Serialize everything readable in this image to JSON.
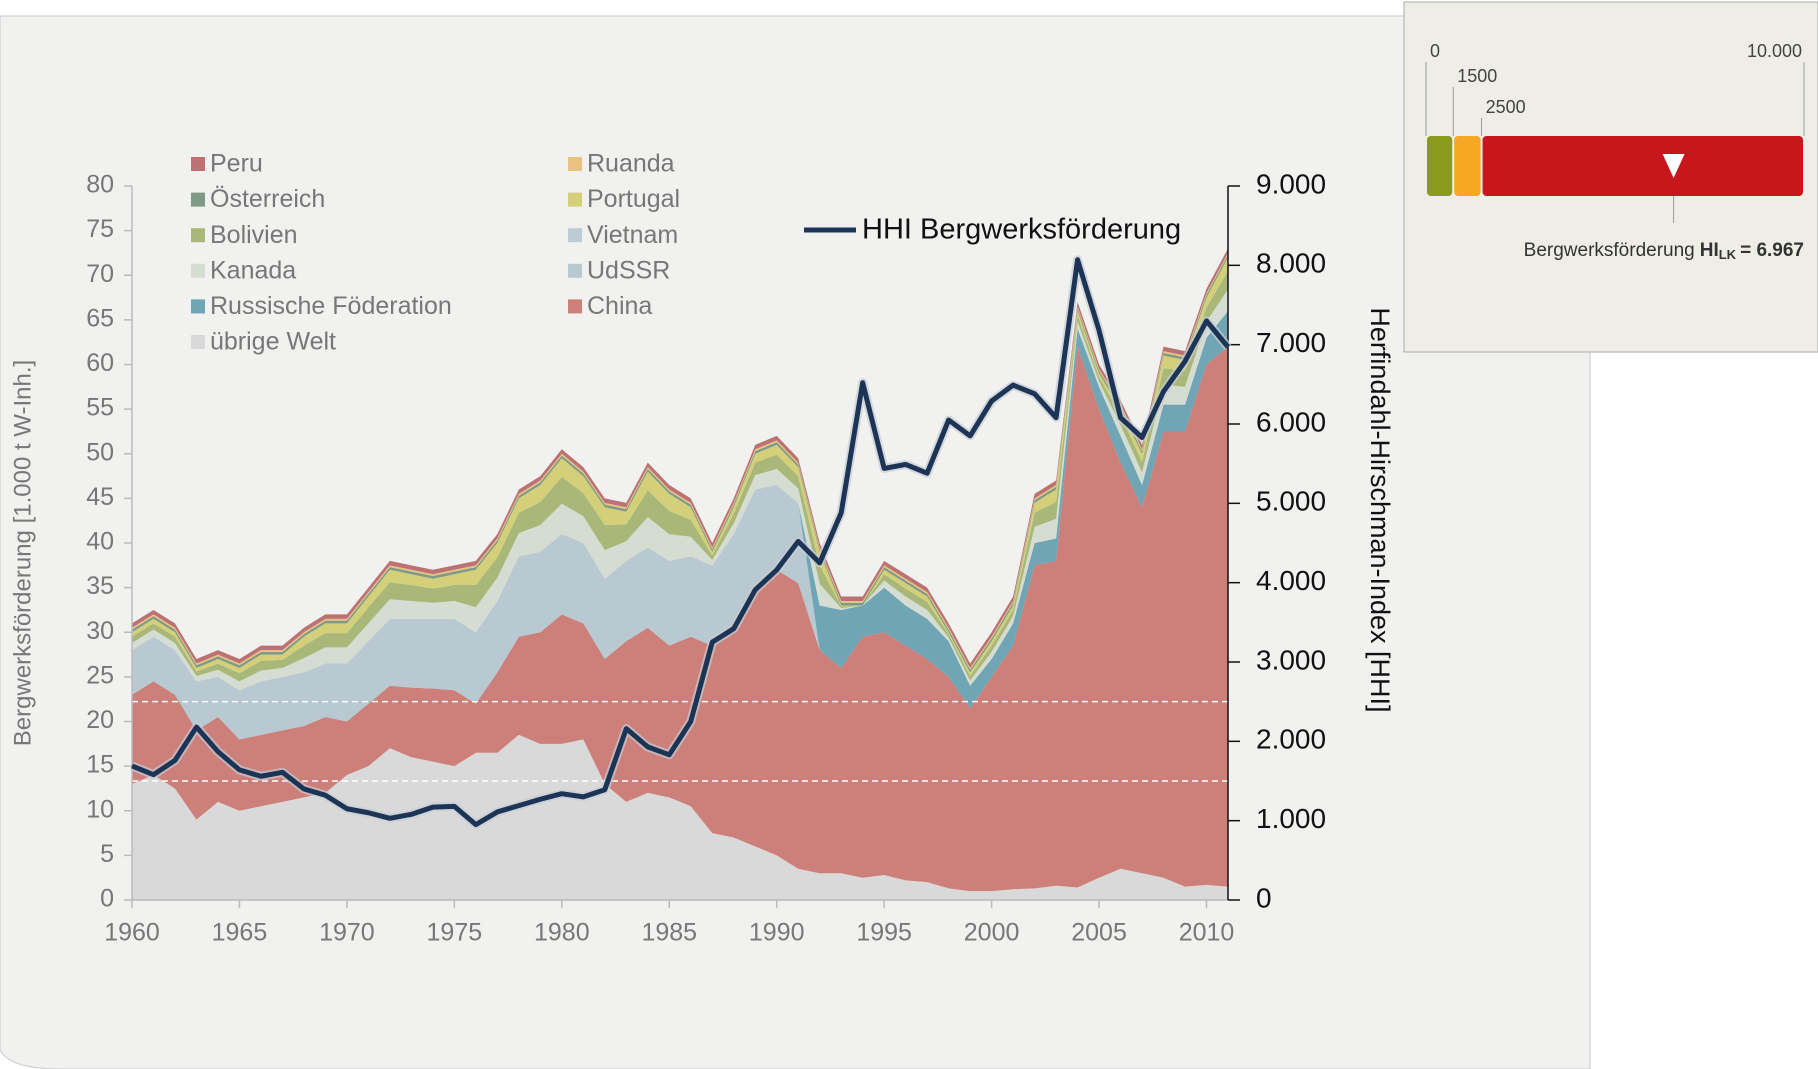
{
  "chart_data": {
    "type": "stacked_area",
    "ylabel": "Bergwerksförderung [1.000 t W-Inh.]",
    "y2label": "Herfindahl-Hirschman-Index [HHI]",
    "x": [
      1960,
      1961,
      1962,
      1963,
      1964,
      1965,
      1966,
      1967,
      1968,
      1969,
      1970,
      1971,
      1972,
      1973,
      1974,
      1975,
      1976,
      1977,
      1978,
      1979,
      1980,
      1981,
      1982,
      1983,
      1984,
      1985,
      1986,
      1987,
      1988,
      1989,
      1990,
      1991,
      1992,
      1993,
      1994,
      1995,
      1996,
      1997,
      1998,
      1999,
      2000,
      2001,
      2002,
      2003,
      2004,
      2005,
      2006,
      2007,
      2008,
      2009,
      2010,
      2011
    ],
    "xlim": [
      1960,
      2011
    ],
    "xticks": [
      1960,
      1965,
      1970,
      1975,
      1980,
      1985,
      1990,
      1995,
      2000,
      2005,
      2010
    ],
    "ylim": [
      0,
      80
    ],
    "yticks": [
      0,
      5,
      10,
      15,
      20,
      25,
      30,
      35,
      40,
      45,
      50,
      55,
      60,
      65,
      70,
      75,
      80
    ],
    "y2lim": [
      0,
      9000
    ],
    "y2ticks": [
      0,
      {
        "value": 1000,
        "label": "1.000"
      },
      {
        "value": 2000,
        "label": "2.000"
      },
      {
        "value": 3000,
        "label": "3.000"
      },
      {
        "value": 4000,
        "label": "4.000"
      },
      {
        "value": 5000,
        "label": "5.000"
      },
      {
        "value": 6000,
        "label": "6.000"
      },
      {
        "value": 7000,
        "label": "7.000"
      },
      {
        "value": 8000,
        "label": "8.000"
      },
      {
        "value": 9000,
        "label": "9.000"
      }
    ],
    "series": [
      {
        "name": "übrige Welt",
        "color": "#d9d9d9",
        "values": [
          13,
          14,
          12.5,
          9,
          11,
          10,
          10.5,
          11,
          11.5,
          12,
          14,
          15,
          17,
          16,
          15.5,
          15,
          16.5,
          16.5,
          18.5,
          17.5,
          17.5,
          18,
          13,
          11,
          12,
          11.5,
          10.5,
          7.5,
          7,
          6,
          5,
          3.5,
          3,
          3,
          2.5,
          2.8,
          2.2,
          2,
          1.3,
          1,
          1,
          1.2,
          1.3,
          1.6,
          1.4,
          2.5,
          3.5,
          3,
          2.5,
          1.5,
          1.7,
          1.5
        ]
      },
      {
        "name": "China",
        "color": "#cd7f79",
        "values": [
          10,
          10.5,
          10.5,
          10,
          9.5,
          8,
          8,
          8,
          8,
          8.5,
          6,
          7,
          7,
          7.8,
          8.2,
          8.5,
          5.5,
          9,
          11,
          12.5,
          14.5,
          13,
          14,
          18,
          18.5,
          17,
          19,
          21,
          24,
          29,
          32,
          32,
          25,
          23,
          27,
          27.2,
          26.3,
          25,
          23.7,
          20.5,
          24,
          27.3,
          36.2,
          36.4,
          60.6,
          52.5,
          45.5,
          41,
          50,
          51,
          58.3,
          60.5
        ]
      },
      {
        "name": "UdSSR",
        "color": "#b8c9d2",
        "values": [
          5,
          5,
          5,
          5.5,
          4.5,
          5.5,
          6,
          6,
          6,
          6,
          6.5,
          7,
          7.5,
          7.7,
          7.8,
          8,
          8,
          8,
          9,
          9,
          9,
          9,
          9,
          9,
          9,
          9.5,
          9,
          9,
          10,
          11,
          9.5,
          9,
          0,
          0,
          0,
          0,
          0,
          0,
          0,
          0,
          0,
          0,
          0,
          0,
          0,
          0,
          0,
          0,
          0,
          0,
          0,
          0
        ]
      },
      {
        "name": "Russische Föderation",
        "color": "#6fa5b5",
        "values": [
          0,
          0,
          0,
          0,
          0,
          0,
          0,
          0,
          0,
          0,
          0,
          0,
          0,
          0,
          0,
          0,
          0,
          0,
          0,
          0,
          0,
          0,
          0,
          0,
          0,
          0,
          0,
          0,
          0,
          0,
          0,
          0,
          5,
          6.5,
          3.5,
          5,
          4.5,
          4.5,
          4,
          2.5,
          2,
          2.5,
          2.5,
          2.5,
          2,
          2.5,
          3,
          2.5,
          3,
          3,
          3,
          4
        ]
      },
      {
        "name": "Vietnam",
        "color": "#bccbd4",
        "values": [
          0,
          0,
          0,
          0,
          0,
          0,
          0,
          0,
          0,
          0,
          0,
          0,
          0,
          0,
          0,
          0,
          0,
          0,
          0,
          0,
          0,
          0,
          0,
          0,
          0,
          0,
          0,
          0,
          0,
          0,
          0,
          0,
          0,
          0,
          0,
          0,
          0,
          0,
          0,
          0,
          0,
          0,
          0,
          0,
          0,
          0,
          0,
          0,
          0,
          0,
          0,
          0
        ]
      },
      {
        "name": "Kanada",
        "color": "#d5ddd3",
        "values": [
          0.8,
          0.8,
          0.8,
          0.6,
          0.8,
          1.0,
          1.2,
          1.0,
          1.6,
          1.8,
          1.8,
          2.0,
          2.2,
          2.0,
          1.8,
          2.0,
          2.8,
          2.6,
          2.6,
          3.0,
          3.4,
          3.0,
          3.2,
          2.2,
          3.4,
          3.0,
          2.2,
          0.6,
          1.2,
          1.6,
          1.8,
          1.6,
          2.4,
          0.2,
          0,
          0.8,
          1.0,
          1.0,
          0.4,
          0.6,
          0.8,
          0.8,
          1.8,
          2.2,
          0.8,
          0.6,
          1.2,
          1.4,
          2.2,
          2.0,
          1.8,
          2.4
        ]
      },
      {
        "name": "Bolivien",
        "color": "#a9b879",
        "values": [
          0.7,
          0.7,
          0.7,
          0.5,
          0.7,
          0.9,
          1.1,
          0.9,
          1.4,
          1.6,
          1.6,
          1.8,
          1.9,
          1.8,
          1.6,
          1.8,
          2.5,
          2.3,
          2.3,
          2.6,
          3.0,
          2.6,
          2.8,
          1.9,
          3.0,
          2.6,
          1.9,
          0.5,
          1.1,
          1.4,
          1.6,
          1.4,
          2.1,
          0.2,
          0,
          0.7,
          0.9,
          0.9,
          0.4,
          0.5,
          0.7,
          0.7,
          1.6,
          1.9,
          0.7,
          0.5,
          1.1,
          1.2,
          1.9,
          1.8,
          1.6,
          2.1
        ]
      },
      {
        "name": "Portugal",
        "color": "#d3d079",
        "values": [
          0.5,
          0.5,
          0.5,
          0.4,
          0.5,
          0.6,
          0.7,
          0.6,
          1.0,
          1.1,
          1.1,
          1.2,
          1.4,
          1.2,
          1.1,
          1.2,
          1.7,
          1.6,
          1.6,
          1.9,
          2.1,
          1.9,
          2.0,
          1.4,
          2.1,
          1.9,
          1.4,
          0.4,
          0.7,
          1.0,
          1.1,
          1.0,
          1.5,
          0.1,
          0,
          0.5,
          0.6,
          0.6,
          0.2,
          0.4,
          0.5,
          0.5,
          1.1,
          1.4,
          0.5,
          0.4,
          0.7,
          0.9,
          1.4,
          1.2,
          1.1,
          1.5
        ]
      },
      {
        "name": "Österreich",
        "color": "#7f9b86",
        "values": [
          0.3,
          0.3,
          0.3,
          0.3,
          0.3,
          0.3,
          0.3,
          0.3,
          0.3,
          0.3,
          0.3,
          0.3,
          0.3,
          0.3,
          0.3,
          0.3,
          0.3,
          0.3,
          0.3,
          0.3,
          0.3,
          0.3,
          0.3,
          0.3,
          0.3,
          0.3,
          0.3,
          0.3,
          0.3,
          0.3,
          0.3,
          0.3,
          0.3,
          0.3,
          0.3,
          0.3,
          0.3,
          0.3,
          0.3,
          0.3,
          0.3,
          0.3,
          0.3,
          0.3,
          0.3,
          0.3,
          0.3,
          0.3,
          0.3,
          0.3,
          0.3,
          0.3
        ]
      },
      {
        "name": "Ruanda",
        "color": "#e9c282",
        "values": [
          0.2,
          0.2,
          0.2,
          0.2,
          0.2,
          0.2,
          0.2,
          0.2,
          0.2,
          0.2,
          0.2,
          0.2,
          0.2,
          0.2,
          0.2,
          0.2,
          0.2,
          0.2,
          0.2,
          0.2,
          0.2,
          0.2,
          0.2,
          0.2,
          0.2,
          0.2,
          0.2,
          0.2,
          0.2,
          0.2,
          0.2,
          0.2,
          0.2,
          0.2,
          0.2,
          0.2,
          0.2,
          0.2,
          0.2,
          0.2,
          0.2,
          0.2,
          0.2,
          0.2,
          0.2,
          0.2,
          0.2,
          0.2,
          0.2,
          0.2,
          0.2,
          0.2
        ]
      },
      {
        "name": "Peru",
        "color": "#bc7272",
        "values": [
          0.5,
          0.5,
          0.5,
          0.5,
          0.5,
          0.5,
          0.5,
          0.5,
          0.5,
          0.5,
          0.5,
          0.5,
          0.5,
          0.5,
          0.5,
          0.5,
          0.5,
          0.5,
          0.5,
          0.5,
          0.5,
          0.5,
          0.5,
          0.5,
          0.5,
          0.5,
          0.5,
          0.5,
          0.5,
          0.5,
          0.5,
          0.5,
          0.5,
          0.5,
          0.5,
          0.5,
          0.5,
          0.5,
          0.5,
          0.5,
          0.5,
          0.5,
          0.5,
          0.5,
          0.5,
          0.5,
          0.5,
          0.5,
          0.5,
          0.5,
          0.5,
          0.5
        ]
      },
      {
        "name": "HHI Bergwerksförderung",
        "color": "#1c3557",
        "axis": "y2",
        "values": [
          1690,
          1580,
          1760,
          2180,
          1870,
          1640,
          1560,
          1610,
          1400,
          1320,
          1150,
          1100,
          1030,
          1080,
          1170,
          1180,
          950,
          1110,
          1190,
          1270,
          1340,
          1300,
          1390,
          2160,
          1930,
          1830,
          2250,
          3250,
          3420,
          3910,
          4160,
          4520,
          4250,
          4880,
          6520,
          5440,
          5490,
          5380,
          6050,
          5850,
          6290,
          6490,
          6380,
          6080,
          8070,
          7180,
          6080,
          5830,
          6410,
          6790,
          7300,
          6970
        ]
      }
    ]
  },
  "gauge": {
    "ticks": [
      0,
      1500,
      2500,
      {
        "value": 10000,
        "label": "10.000"
      }
    ],
    "colors": [
      "#8a9a1c",
      "#f6a723",
      "#c8161d"
    ],
    "label": "Bergwerksförderung",
    "index_name": "HI",
    "index_sub": "LK",
    "value": 6967,
    "value_label": "= 6.967"
  }
}
